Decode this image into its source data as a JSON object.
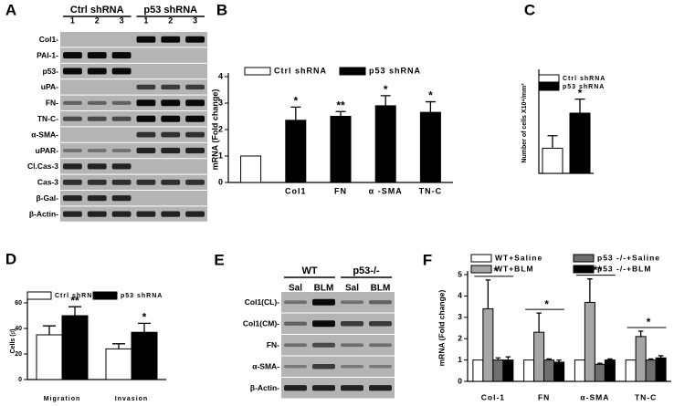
{
  "panels": {
    "A": {
      "label": "A",
      "groups": [
        "Ctrl shRNA",
        "p53 shRNA"
      ],
      "lanes": [
        "1",
        "2",
        "3",
        "1",
        "2",
        "3"
      ],
      "rows": [
        "Col1-",
        "PAI-1-",
        "p53-",
        "uPA-",
        "FN-",
        "TN-C-",
        "α-SMA-",
        "uPAR-",
        "Cl.Cas-3",
        "Cas-3",
        "β-Gal-",
        "β-Actin-"
      ]
    },
    "E": {
      "label": "E",
      "groups": [
        "WT",
        "p53-/-"
      ],
      "lanes": [
        "Sal",
        "BLM",
        "Sal",
        "BLM"
      ],
      "rows": [
        "Col1(CL)-",
        "Col1(CM)-",
        "FN-",
        "α-SMA-",
        "β-Actin-"
      ]
    }
  },
  "chart_data": [
    {
      "panel": "B",
      "type": "bar",
      "y_label": "mRNA (Fold change)",
      "categories": [
        null,
        "Col1",
        "FN",
        "α -SMA",
        "TN-C"
      ],
      "series": [
        {
          "name": "Ctrl shRNA",
          "color": "#ffffff",
          "values": [
            1,
            null,
            null,
            null,
            null
          ],
          "errors": [
            null,
            null,
            null,
            null,
            null
          ]
        },
        {
          "name": "p53 shRNA",
          "color": "#000000",
          "values": [
            null,
            2.35,
            2.5,
            2.9,
            2.65
          ],
          "errors": [
            null,
            0.5,
            0.18,
            0.38,
            0.4
          ]
        }
      ],
      "significance": [
        null,
        "*",
        "**",
        "*",
        "*"
      ],
      "ylim": [
        0,
        4
      ],
      "yticks": [
        0,
        1,
        2,
        3,
        4
      ]
    },
    {
      "panel": "C",
      "type": "bar",
      "y_label": "Number of cells X10⁴/mm³",
      "categories": [
        null,
        null
      ],
      "series": [
        {
          "name": "Ctrl shRNA",
          "color": "#ffffff",
          "values": [
            5,
            null
          ],
          "errors": [
            2.5,
            null
          ]
        },
        {
          "name": "p53 shRNA",
          "color": "#000000",
          "values": [
            null,
            12
          ],
          "errors": [
            null,
            2.8
          ]
        }
      ],
      "significance": [
        null,
        "*"
      ],
      "ylim": [
        0,
        20
      ]
    },
    {
      "panel": "D",
      "type": "bar",
      "y_label": "Cells (♯)",
      "categories": [
        "Migration",
        "Invasion"
      ],
      "series": [
        {
          "name": "Ctrl shRNA",
          "color": "#ffffff",
          "values": [
            35,
            24
          ],
          "errors": [
            7,
            4
          ]
        },
        {
          "name": "p53 shRNA",
          "color": "#000000",
          "values": [
            50,
            37
          ],
          "errors": [
            7,
            7
          ]
        }
      ],
      "significance": [
        "**",
        "*"
      ],
      "ylim": [
        0,
        60
      ],
      "yticks": [
        0,
        20,
        40,
        60
      ]
    },
    {
      "panel": "F",
      "type": "bar",
      "y_label": "mRNA (Fold change)",
      "categories": [
        "Col-1",
        "FN",
        "α-SMA",
        "TN-C"
      ],
      "series": [
        {
          "name": "WT+Saline",
          "color": "#ffffff",
          "values": [
            1,
            1,
            1,
            1
          ],
          "errors": [
            null,
            null,
            null,
            null
          ]
        },
        {
          "name": "WT+BLM",
          "color": "#a6a6a6",
          "values": [
            3.4,
            2.3,
            3.7,
            2.1
          ],
          "errors": [
            1.35,
            0.9,
            1.1,
            0.25
          ]
        },
        {
          "name": "p53 -/-+Saline",
          "color": "#6e6e6e",
          "values": [
            1,
            1,
            0.8,
            1
          ],
          "errors": [
            0.1,
            0.05,
            0.05,
            0.05
          ]
        },
        {
          "name": "p53 -/-+BLM",
          "color": "#000000",
          "values": [
            1,
            0.9,
            1,
            1.1
          ],
          "errors": [
            0.15,
            0.1,
            0.05,
            0.1
          ]
        }
      ],
      "significance": [
        "*",
        "*",
        "**",
        "*"
      ],
      "ylim": [
        0,
        5
      ],
      "yticks": [
        0,
        1,
        2,
        3,
        4,
        5
      ]
    }
  ]
}
